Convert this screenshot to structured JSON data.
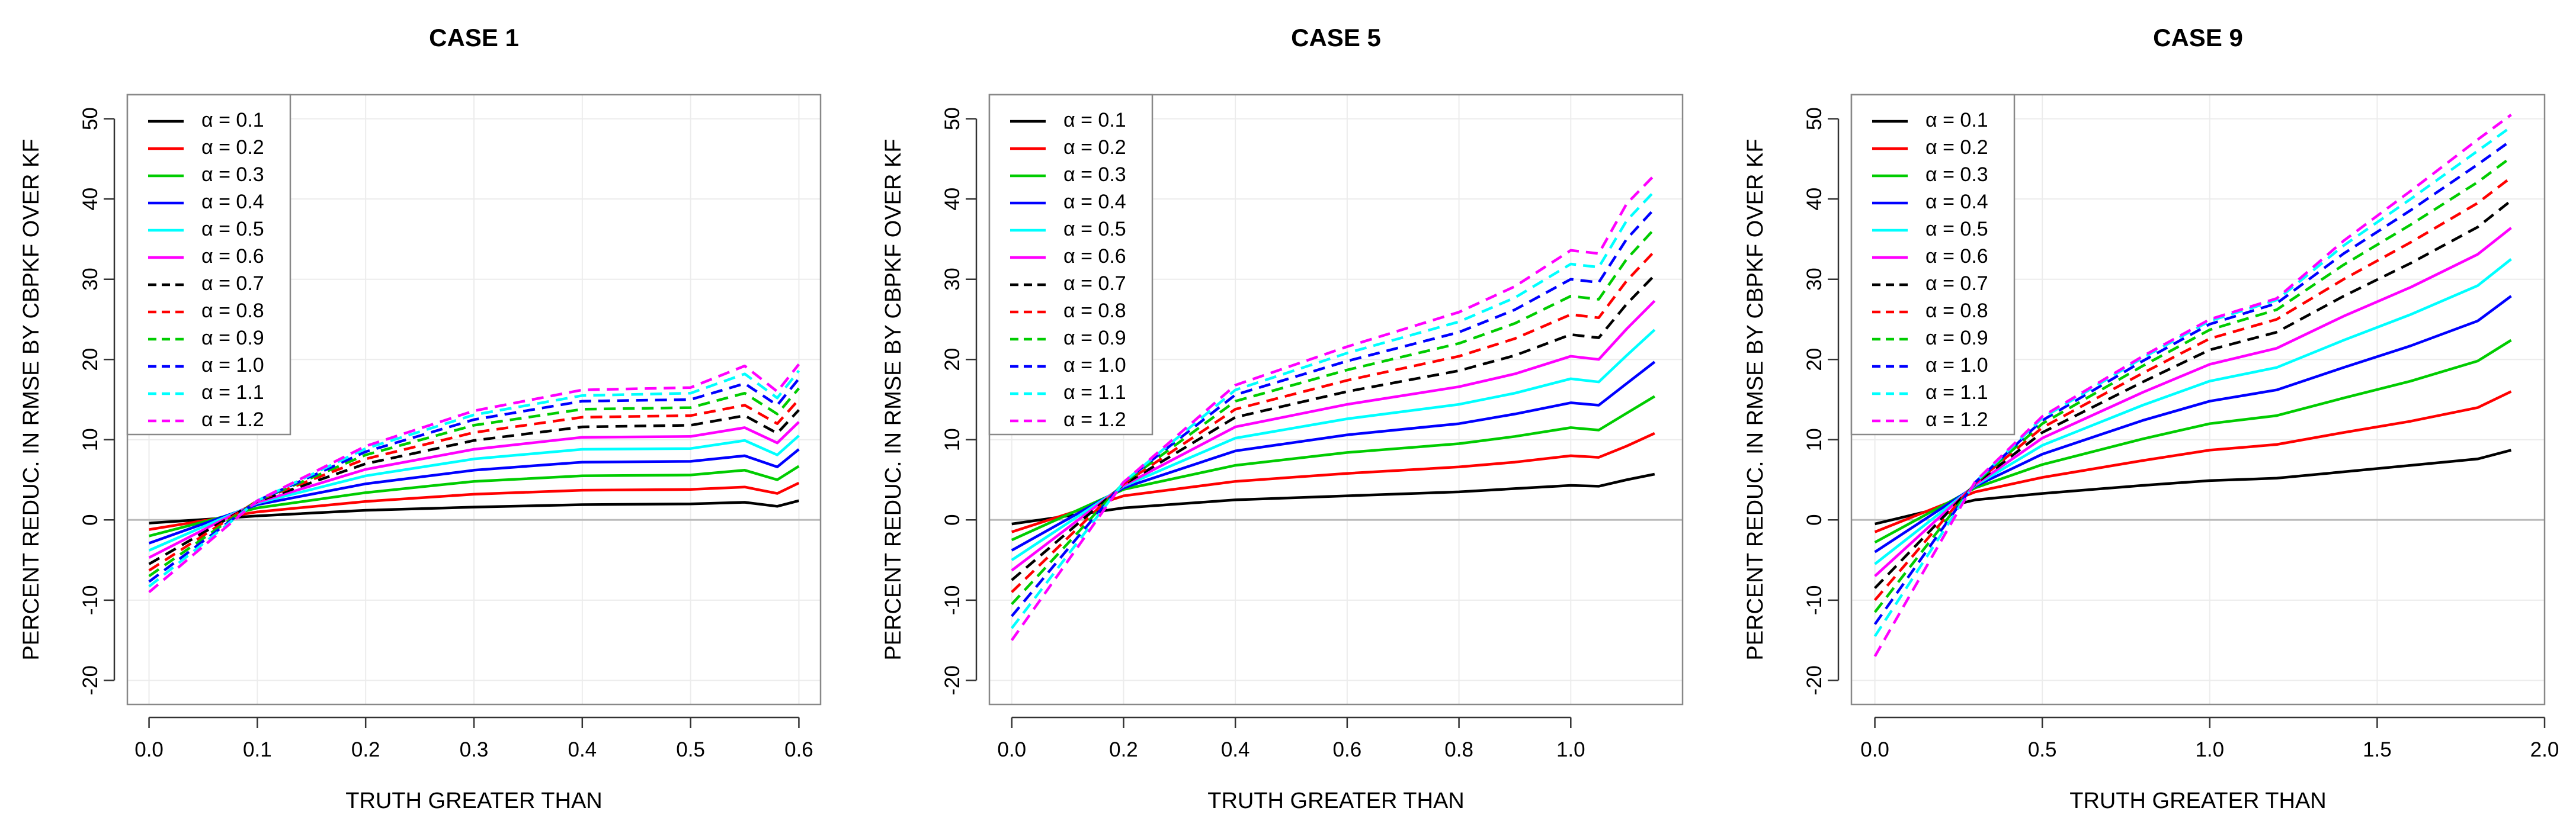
{
  "chart_data": [
    {
      "type": "line",
      "title": "CASE 1",
      "xlabel": "TRUTH GREATER THAN",
      "ylabel": "PERCENT REDUC. IN RMSE BY CBPKF OVER KF",
      "xlim": [
        -0.02,
        0.62
      ],
      "ylim": [
        -23,
        53
      ],
      "xticks": [
        0.0,
        0.1,
        0.2,
        0.3,
        0.4,
        0.5,
        0.6
      ],
      "xtick_labels": [
        "0.0",
        "0.1",
        "0.2",
        "0.3",
        "0.4",
        "0.5",
        "0.6"
      ],
      "yticks": [
        -20,
        -10,
        0,
        10,
        20,
        30,
        40,
        50
      ],
      "ytick_labels": [
        "-20",
        "-10",
        "0",
        "10",
        "20",
        "30",
        "40",
        "50"
      ],
      "grid": true,
      "legend_position": "top-left",
      "x": [
        0,
        0.1,
        0.2,
        0.3,
        0.4,
        0.5,
        0.55,
        0.58,
        0.6
      ],
      "series": [
        {
          "name": "α = 0.1",
          "color": "#000000",
          "dash": false,
          "values": [
            -0.4,
            0.5,
            1.2,
            1.6,
            1.9,
            2.0,
            2.2,
            1.7,
            2.4
          ]
        },
        {
          "name": "α = 0.2",
          "color": "#ff0000",
          "dash": false,
          "values": [
            -1.2,
            1.0,
            2.3,
            3.2,
            3.7,
            3.8,
            4.1,
            3.3,
            4.6
          ]
        },
        {
          "name": "α = 0.3",
          "color": "#00cc00",
          "dash": false,
          "values": [
            -2.0,
            1.5,
            3.4,
            4.8,
            5.5,
            5.6,
            6.2,
            5.0,
            6.7
          ]
        },
        {
          "name": "α = 0.4",
          "color": "#0000ff",
          "dash": false,
          "values": [
            -2.9,
            1.9,
            4.5,
            6.2,
            7.2,
            7.3,
            8.0,
            6.6,
            8.8
          ]
        },
        {
          "name": "α = 0.5",
          "color": "#00ffff",
          "dash": false,
          "values": [
            -3.8,
            2.1,
            5.5,
            7.6,
            8.8,
            8.9,
            9.9,
            8.1,
            10.5
          ]
        },
        {
          "name": "α = 0.6",
          "color": "#ff00ff",
          "dash": false,
          "values": [
            -4.7,
            2.2,
            6.3,
            8.8,
            10.3,
            10.4,
            11.5,
            9.6,
            12.2
          ]
        },
        {
          "name": "α = 0.7",
          "color": "#000000",
          "dash": true,
          "values": [
            -5.5,
            2.3,
            7.0,
            9.9,
            11.6,
            11.8,
            13.0,
            10.8,
            13.7
          ]
        },
        {
          "name": "α = 0.8",
          "color": "#ff0000",
          "dash": true,
          "values": [
            -6.3,
            2.4,
            7.6,
            10.9,
            12.8,
            13.0,
            14.3,
            12.0,
            15.0
          ]
        },
        {
          "name": "α = 0.9",
          "color": "#00cc00",
          "dash": true,
          "values": [
            -7.0,
            2.4,
            8.1,
            11.8,
            13.8,
            14.0,
            15.8,
            13.2,
            16.4
          ]
        },
        {
          "name": "α = 1.0",
          "color": "#0000ff",
          "dash": true,
          "values": [
            -7.7,
            2.4,
            8.5,
            12.5,
            14.8,
            15.0,
            17.0,
            14.3,
            17.6
          ]
        },
        {
          "name": "α = 1.1",
          "color": "#00ffff",
          "dash": true,
          "values": [
            -8.3,
            2.4,
            8.9,
            13.1,
            15.5,
            15.8,
            18.2,
            15.2,
            18.6
          ]
        },
        {
          "name": "α = 1.2",
          "color": "#ff00ff",
          "dash": true,
          "values": [
            -9.0,
            2.4,
            9.2,
            13.6,
            16.2,
            16.5,
            19.2,
            16.0,
            19.4
          ]
        }
      ]
    },
    {
      "type": "line",
      "title": "CASE 5",
      "xlabel": "TRUTH GREATER THAN",
      "ylabel": "PERCENT REDUC. IN RMSE BY CBPKF OVER KF",
      "xlim": [
        -0.04,
        1.2
      ],
      "ylim": [
        -23,
        53
      ],
      "xticks": [
        0.0,
        0.2,
        0.4,
        0.6,
        0.8,
        1.0
      ],
      "xtick_labels": [
        "0.0",
        "0.2",
        "0.4",
        "0.6",
        "0.8",
        "1.0"
      ],
      "yticks": [
        -20,
        -10,
        0,
        10,
        20,
        30,
        40,
        50
      ],
      "ytick_labels": [
        "-20",
        "-10",
        "0",
        "10",
        "20",
        "30",
        "40",
        "50"
      ],
      "grid": true,
      "legend_position": "top-left",
      "x": [
        0,
        0.2,
        0.4,
        0.6,
        0.8,
        0.9,
        1.0,
        1.05,
        1.1,
        1.15
      ],
      "series": [
        {
          "name": "α = 0.1",
          "color": "#000000",
          "dash": false,
          "values": [
            -0.5,
            1.5,
            2.5,
            3.0,
            3.5,
            3.9,
            4.3,
            4.2,
            5.0,
            5.7
          ]
        },
        {
          "name": "α = 0.2",
          "color": "#ff0000",
          "dash": false,
          "values": [
            -1.5,
            3.0,
            4.8,
            5.8,
            6.6,
            7.2,
            8.0,
            7.8,
            9.2,
            10.8
          ]
        },
        {
          "name": "α = 0.3",
          "color": "#00cc00",
          "dash": false,
          "values": [
            -2.5,
            3.8,
            6.8,
            8.4,
            9.5,
            10.4,
            11.5,
            11.2,
            13.3,
            15.4
          ]
        },
        {
          "name": "α = 0.4",
          "color": "#0000ff",
          "dash": false,
          "values": [
            -3.8,
            4.0,
            8.6,
            10.6,
            12.0,
            13.2,
            14.6,
            14.3,
            17.0,
            19.7
          ]
        },
        {
          "name": "α = 0.5",
          "color": "#00ffff",
          "dash": false,
          "values": [
            -5.0,
            4.2,
            10.2,
            12.6,
            14.4,
            15.8,
            17.6,
            17.2,
            20.5,
            23.7
          ]
        },
        {
          "name": "α = 0.6",
          "color": "#ff00ff",
          "dash": false,
          "values": [
            -6.3,
            4.3,
            11.6,
            14.4,
            16.6,
            18.2,
            20.4,
            20.0,
            23.8,
            27.3
          ]
        },
        {
          "name": "α = 0.7",
          "color": "#000000",
          "dash": true,
          "values": [
            -7.5,
            4.4,
            12.8,
            16.0,
            18.6,
            20.5,
            23.1,
            22.7,
            26.9,
            30.5
          ]
        },
        {
          "name": "α = 0.8",
          "color": "#ff0000",
          "dash": true,
          "values": [
            -9.0,
            4.5,
            13.8,
            17.4,
            20.4,
            22.6,
            25.6,
            25.2,
            29.8,
            33.5
          ]
        },
        {
          "name": "α = 0.9",
          "color": "#00cc00",
          "dash": true,
          "values": [
            -10.5,
            4.6,
            14.8,
            18.7,
            22.0,
            24.5,
            27.9,
            27.5,
            32.5,
            36.3
          ]
        },
        {
          "name": "α = 1.0",
          "color": "#0000ff",
          "dash": true,
          "values": [
            -12.0,
            4.7,
            15.6,
            19.8,
            23.4,
            26.2,
            30.0,
            29.6,
            35.0,
            38.8
          ]
        },
        {
          "name": "α = 1.1",
          "color": "#00ffff",
          "dash": true,
          "values": [
            -13.5,
            4.7,
            16.2,
            20.8,
            24.7,
            27.7,
            31.9,
            31.5,
            37.3,
            41.0
          ]
        },
        {
          "name": "α = 1.2",
          "color": "#ff00ff",
          "dash": true,
          "values": [
            -15.0,
            4.7,
            16.8,
            21.6,
            25.9,
            29.1,
            33.6,
            33.2,
            39.4,
            43.0
          ]
        }
      ]
    },
    {
      "type": "line",
      "title": "CASE 9",
      "xlabel": "TRUTH GREATER THAN",
      "ylabel": "PERCENT REDUC. IN RMSE BY CBPKF OVER KF",
      "xlim": [
        -0.07,
        2.0
      ],
      "ylim": [
        -23,
        53
      ],
      "xticks": [
        0.0,
        0.5,
        1.0,
        1.5,
        2.0
      ],
      "xtick_labels": [
        "0.0",
        "0.5",
        "1.0",
        "1.5",
        "2.0"
      ],
      "yticks": [
        -20,
        -10,
        0,
        10,
        20,
        30,
        40,
        50
      ],
      "ytick_labels": [
        "-20",
        "-10",
        "0",
        "10",
        "20",
        "30",
        "40",
        "50"
      ],
      "grid": true,
      "legend_position": "top-left",
      "x": [
        0,
        0.3,
        0.5,
        0.8,
        1.0,
        1.2,
        1.4,
        1.6,
        1.8,
        1.9
      ],
      "series": [
        {
          "name": "α = 0.1",
          "color": "#000000",
          "dash": false,
          "values": [
            -0.5,
            2.5,
            3.3,
            4.3,
            4.9,
            5.2,
            6.0,
            6.8,
            7.6,
            8.7
          ]
        },
        {
          "name": "α = 0.2",
          "color": "#ff0000",
          "dash": false,
          "values": [
            -1.5,
            3.5,
            5.3,
            7.4,
            8.7,
            9.4,
            10.9,
            12.3,
            14.0,
            16.0
          ]
        },
        {
          "name": "α = 0.3",
          "color": "#00cc00",
          "dash": false,
          "values": [
            -2.8,
            4.0,
            6.9,
            10.1,
            12.0,
            13.0,
            15.2,
            17.3,
            19.8,
            22.4
          ]
        },
        {
          "name": "α = 0.4",
          "color": "#0000ff",
          "dash": false,
          "values": [
            -4.0,
            4.2,
            8.2,
            12.4,
            14.8,
            16.2,
            19.0,
            21.7,
            24.8,
            27.9
          ]
        },
        {
          "name": "α = 0.5",
          "color": "#00ffff",
          "dash": false,
          "values": [
            -5.5,
            4.3,
            9.3,
            14.3,
            17.3,
            19.0,
            22.4,
            25.6,
            29.2,
            32.5
          ]
        },
        {
          "name": "α = 0.6",
          "color": "#ff00ff",
          "dash": false,
          "values": [
            -7.0,
            4.4,
            10.2,
            15.9,
            19.4,
            21.4,
            25.4,
            29.0,
            33.1,
            36.4
          ]
        },
        {
          "name": "α = 0.7",
          "color": "#000000",
          "dash": true,
          "values": [
            -8.5,
            4.5,
            10.9,
            17.2,
            21.2,
            23.4,
            27.9,
            32.0,
            36.5,
            39.8
          ]
        },
        {
          "name": "α = 0.8",
          "color": "#ff0000",
          "dash": true,
          "values": [
            -10.0,
            4.6,
            11.5,
            18.3,
            22.6,
            25.0,
            30.0,
            34.6,
            39.5,
            42.7
          ]
        },
        {
          "name": "α = 0.9",
          "color": "#00cc00",
          "dash": true,
          "values": [
            -11.5,
            4.6,
            12.0,
            19.2,
            23.7,
            26.2,
            31.8,
            36.8,
            42.1,
            45.2
          ]
        },
        {
          "name": "α = 1.0",
          "color": "#0000ff",
          "dash": true,
          "values": [
            -13.0,
            4.7,
            12.4,
            19.8,
            24.4,
            27.0,
            33.2,
            38.6,
            44.3,
            47.3
          ]
        },
        {
          "name": "α = 1.1",
          "color": "#00ffff",
          "dash": true,
          "values": [
            -14.5,
            4.7,
            12.7,
            20.2,
            24.8,
            27.4,
            34.2,
            40.0,
            46.0,
            49.0
          ]
        },
        {
          "name": "α = 1.2",
          "color": "#ff00ff",
          "dash": true,
          "values": [
            -17.0,
            4.8,
            12.9,
            20.4,
            25.0,
            27.6,
            34.8,
            41.0,
            47.4,
            50.5
          ]
        }
      ]
    }
  ]
}
